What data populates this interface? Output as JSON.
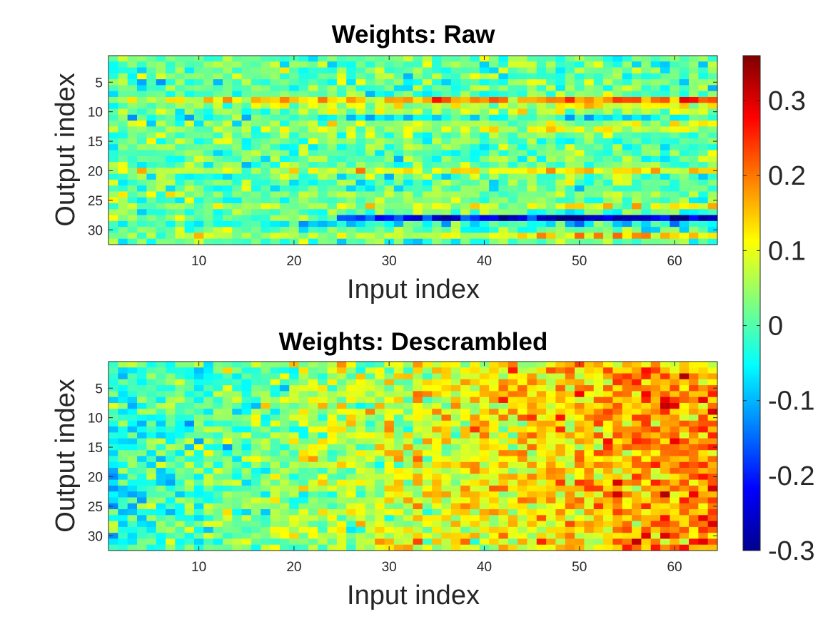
{
  "chart_data": [
    {
      "type": "heatmap",
      "title": "Weights: Raw",
      "xlabel": "Input index",
      "ylabel": "Output index",
      "xlim": [
        0.5,
        64.5
      ],
      "ylim": [
        0.5,
        32.5
      ],
      "y_reversed": true,
      "rows": 32,
      "cols": 64,
      "xticks": [
        10,
        20,
        30,
        40,
        50,
        60
      ],
      "yticks": [
        5,
        10,
        15,
        20,
        25,
        30
      ],
      "colormap": "jet",
      "row_trend": {
        "8": 0.18,
        "9": 0.08,
        "10": 0.05,
        "11": -0.04,
        "12": 0.05,
        "13": 0.06,
        "20": 0.12,
        "24": 0.12,
        "26": 0.08,
        "28": -0.22,
        "29": -0.05,
        "31": 0.1
      },
      "description_values": "Values range roughly from -0.3 to 0.35; most cells between -0.1 and 0.15"
    },
    {
      "type": "heatmap",
      "title": "Weights: Descrambled",
      "xlabel": "Input index",
      "ylabel": "Output index",
      "xlim": [
        0.5,
        64.5
      ],
      "ylim": [
        0.5,
        32.5
      ],
      "y_reversed": true,
      "rows": 32,
      "cols": 64,
      "xticks": [
        10,
        20,
        30,
        40,
        50,
        60
      ],
      "yticks": [
        5,
        10,
        15,
        20,
        25,
        30
      ],
      "colormap": "jet",
      "col_trend": {
        "start": -0.03,
        "end": 0.2
      },
      "description_values": "Values increase from left (around 0 to -0.1) to right (around 0.15 to 0.3)"
    }
  ],
  "colorbar": {
    "min": -0.3,
    "max": 0.36,
    "ticks": [
      0.3,
      0.2,
      0.1,
      0,
      -0.1,
      -0.2,
      -0.3
    ],
    "tick_labels": [
      "0.3",
      "0.2",
      "0.1",
      "0",
      "-0.1",
      "-0.2",
      "-0.3"
    ]
  }
}
